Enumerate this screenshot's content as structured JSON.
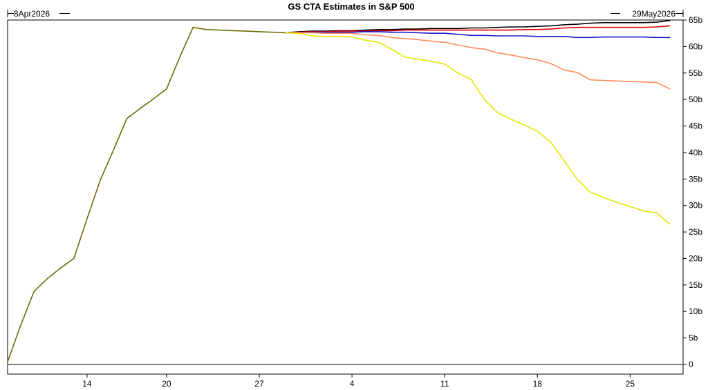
{
  "chart_data": {
    "type": "line",
    "title": "GS CTA Estimates in S&P 500",
    "start_label": "8Apr2026",
    "end_label": "29May2026",
    "xlabel": "",
    "ylabel": "",
    "x_range": [
      "2026-04-08",
      "2026-05-29"
    ],
    "x_ticks": [
      {
        "date": "2026-04-14",
        "label": "14"
      },
      {
        "date": "2026-04-20",
        "label": "20"
      },
      {
        "date": "2026-04-27",
        "label": "27"
      },
      {
        "date": "2026-05-04",
        "label": "4"
      },
      {
        "date": "2026-05-11",
        "label": "11"
      },
      {
        "date": "2026-05-18",
        "label": "18"
      },
      {
        "date": "2026-05-25",
        "label": "25"
      }
    ],
    "ylim": [
      0,
      65
    ],
    "y_ticks": [
      {
        "value": 65,
        "label": "65b"
      },
      {
        "value": 60,
        "label": "60b"
      },
      {
        "value": 55,
        "label": "55b"
      },
      {
        "value": 50,
        "label": "50b"
      },
      {
        "value": 45,
        "label": "45b"
      },
      {
        "value": 40,
        "label": "40b"
      },
      {
        "value": 35,
        "label": "35b"
      },
      {
        "value": 30,
        "label": "30b"
      },
      {
        "value": 25,
        "label": "25b"
      },
      {
        "value": 20,
        "label": "20b"
      },
      {
        "value": 15,
        "label": "15b"
      },
      {
        "value": 10,
        "label": "10b"
      },
      {
        "value": 5,
        "label": "5b"
      },
      {
        "value": 0,
        "label": "0"
      }
    ],
    "y_axis_side": "right",
    "grid": false,
    "legend": "none",
    "series": [
      {
        "color": "#6b6b00",
        "points": [
          [
            "2026-04-08",
            0.5
          ],
          [
            "2026-04-09",
            7.5
          ],
          [
            "2026-04-10",
            13.8
          ],
          [
            "2026-04-11",
            16.2
          ],
          [
            "2026-04-12",
            18.2
          ],
          [
            "2026-04-13",
            20.0
          ],
          [
            "2026-04-14",
            27.5
          ],
          [
            "2026-04-15",
            34.8
          ],
          [
            "2026-04-16",
            40.5
          ],
          [
            "2026-04-17",
            46.4
          ],
          [
            "2026-04-18",
            48.3
          ],
          [
            "2026-04-19",
            50.1
          ],
          [
            "2026-04-20",
            52.0
          ],
          [
            "2026-04-21",
            58.0
          ],
          [
            "2026-04-22",
            63.6
          ],
          [
            "2026-04-23",
            63.2
          ],
          [
            "2026-04-24",
            63.1
          ],
          [
            "2026-04-25",
            63.0
          ],
          [
            "2026-04-26",
            62.9
          ],
          [
            "2026-04-27",
            62.8
          ],
          [
            "2026-04-28",
            62.7
          ],
          [
            "2026-04-29",
            62.6
          ]
        ]
      },
      {
        "color": "#000000",
        "points": [
          [
            "2026-04-29",
            62.6
          ],
          [
            "2026-04-30",
            62.8
          ],
          [
            "2026-05-01",
            62.9
          ],
          [
            "2026-05-02",
            62.9
          ],
          [
            "2026-05-03",
            63.0
          ],
          [
            "2026-05-04",
            63.0
          ],
          [
            "2026-05-05",
            63.1
          ],
          [
            "2026-05-06",
            63.2
          ],
          [
            "2026-05-07",
            63.2
          ],
          [
            "2026-05-08",
            63.3
          ],
          [
            "2026-05-09",
            63.3
          ],
          [
            "2026-05-10",
            63.4
          ],
          [
            "2026-05-11",
            63.4
          ],
          [
            "2026-05-12",
            63.4
          ],
          [
            "2026-05-13",
            63.5
          ],
          [
            "2026-05-14",
            63.5
          ],
          [
            "2026-05-15",
            63.6
          ],
          [
            "2026-05-16",
            63.7
          ],
          [
            "2026-05-17",
            63.7
          ],
          [
            "2026-05-18",
            63.8
          ],
          [
            "2026-05-19",
            63.9
          ],
          [
            "2026-05-20",
            64.1
          ],
          [
            "2026-05-21",
            64.2
          ],
          [
            "2026-05-22",
            64.4
          ],
          [
            "2026-05-23",
            64.5
          ],
          [
            "2026-05-24",
            64.5
          ],
          [
            "2026-05-25",
            64.5
          ],
          [
            "2026-05-26",
            64.5
          ],
          [
            "2026-05-27",
            64.6
          ],
          [
            "2026-05-28",
            64.9
          ]
        ]
      },
      {
        "color": "#e00000",
        "points": [
          [
            "2026-04-29",
            62.6
          ],
          [
            "2026-04-30",
            62.7
          ],
          [
            "2026-05-01",
            62.8
          ],
          [
            "2026-05-02",
            62.8
          ],
          [
            "2026-05-03",
            62.9
          ],
          [
            "2026-05-04",
            62.9
          ],
          [
            "2026-05-05",
            62.9
          ],
          [
            "2026-05-06",
            63.0
          ],
          [
            "2026-05-07",
            63.0
          ],
          [
            "2026-05-08",
            63.1
          ],
          [
            "2026-05-09",
            63.1
          ],
          [
            "2026-05-10",
            63.1
          ],
          [
            "2026-05-11",
            63.1
          ],
          [
            "2026-05-12",
            63.1
          ],
          [
            "2026-05-13",
            63.1
          ],
          [
            "2026-05-14",
            63.1
          ],
          [
            "2026-05-15",
            63.1
          ],
          [
            "2026-05-16",
            63.1
          ],
          [
            "2026-05-17",
            63.2
          ],
          [
            "2026-05-18",
            63.2
          ],
          [
            "2026-05-19",
            63.3
          ],
          [
            "2026-05-20",
            63.5
          ],
          [
            "2026-05-21",
            63.6
          ],
          [
            "2026-05-22",
            63.6
          ],
          [
            "2026-05-23",
            63.6
          ],
          [
            "2026-05-24",
            63.6
          ],
          [
            "2026-05-25",
            63.6
          ],
          [
            "2026-05-26",
            63.6
          ],
          [
            "2026-05-27",
            63.7
          ],
          [
            "2026-05-28",
            63.9
          ]
        ]
      },
      {
        "color": "#1a1acc",
        "points": [
          [
            "2026-04-29",
            62.6
          ],
          [
            "2026-04-30",
            62.6
          ],
          [
            "2026-05-01",
            62.7
          ],
          [
            "2026-05-02",
            62.7
          ],
          [
            "2026-05-03",
            62.7
          ],
          [
            "2026-05-04",
            62.7
          ],
          [
            "2026-05-05",
            62.8
          ],
          [
            "2026-05-06",
            62.8
          ],
          [
            "2026-05-07",
            62.7
          ],
          [
            "2026-05-08",
            62.7
          ],
          [
            "2026-05-09",
            62.6
          ],
          [
            "2026-05-10",
            62.5
          ],
          [
            "2026-05-11",
            62.5
          ],
          [
            "2026-05-12",
            62.3
          ],
          [
            "2026-05-13",
            62.1
          ],
          [
            "2026-05-14",
            62.1
          ],
          [
            "2026-05-15",
            62.0
          ],
          [
            "2026-05-16",
            62.0
          ],
          [
            "2026-05-17",
            62.0
          ],
          [
            "2026-05-18",
            61.9
          ],
          [
            "2026-05-19",
            61.9
          ],
          [
            "2026-05-20",
            61.9
          ],
          [
            "2026-05-21",
            61.7
          ],
          [
            "2026-05-22",
            61.7
          ],
          [
            "2026-05-23",
            61.8
          ],
          [
            "2026-05-24",
            61.8
          ],
          [
            "2026-05-25",
            61.8
          ],
          [
            "2026-05-26",
            61.8
          ],
          [
            "2026-05-27",
            61.7
          ],
          [
            "2026-05-28",
            61.7
          ]
        ]
      },
      {
        "color": "#ff8c5a",
        "points": [
          [
            "2026-04-29",
            62.6
          ],
          [
            "2026-04-30",
            62.6
          ],
          [
            "2026-05-01",
            62.6
          ],
          [
            "2026-05-02",
            62.5
          ],
          [
            "2026-05-03",
            62.5
          ],
          [
            "2026-05-04",
            62.5
          ],
          [
            "2026-05-05",
            62.2
          ],
          [
            "2026-05-06",
            62.1
          ],
          [
            "2026-05-07",
            61.7
          ],
          [
            "2026-05-08",
            61.5
          ],
          [
            "2026-05-09",
            61.3
          ],
          [
            "2026-05-10",
            61.0
          ],
          [
            "2026-05-11",
            60.8
          ],
          [
            "2026-05-12",
            60.3
          ],
          [
            "2026-05-13",
            59.8
          ],
          [
            "2026-05-14",
            59.5
          ],
          [
            "2026-05-15",
            58.8
          ],
          [
            "2026-05-16",
            58.4
          ],
          [
            "2026-05-17",
            57.9
          ],
          [
            "2026-05-18",
            57.5
          ],
          [
            "2026-05-19",
            56.8
          ],
          [
            "2026-05-20",
            55.6
          ],
          [
            "2026-05-21",
            55.1
          ],
          [
            "2026-05-22",
            53.7
          ],
          [
            "2026-05-23",
            53.6
          ],
          [
            "2026-05-24",
            53.5
          ],
          [
            "2026-05-25",
            53.4
          ],
          [
            "2026-05-26",
            53.3
          ],
          [
            "2026-05-27",
            53.2
          ],
          [
            "2026-05-28",
            52.0
          ]
        ]
      },
      {
        "color": "#e6e600",
        "points": [
          [
            "2026-04-29",
            62.6
          ],
          [
            "2026-04-30",
            62.5
          ],
          [
            "2026-05-01",
            62.0
          ],
          [
            "2026-05-02",
            61.9
          ],
          [
            "2026-05-03",
            61.9
          ],
          [
            "2026-05-04",
            61.8
          ],
          [
            "2026-05-05",
            61.2
          ],
          [
            "2026-05-06",
            60.8
          ],
          [
            "2026-05-07",
            59.5
          ],
          [
            "2026-05-08",
            58.0
          ],
          [
            "2026-05-09",
            57.6
          ],
          [
            "2026-05-10",
            57.2
          ],
          [
            "2026-05-11",
            56.7
          ],
          [
            "2026-05-12",
            55.0
          ],
          [
            "2026-05-13",
            53.8
          ],
          [
            "2026-05-14",
            50.0
          ],
          [
            "2026-05-15",
            47.5
          ],
          [
            "2026-05-16",
            46.3
          ],
          [
            "2026-05-17",
            45.2
          ],
          [
            "2026-05-18",
            44.0
          ],
          [
            "2026-05-19",
            42.0
          ],
          [
            "2026-05-20",
            38.5
          ],
          [
            "2026-05-21",
            35.0
          ],
          [
            "2026-05-22",
            32.5
          ],
          [
            "2026-05-23",
            31.5
          ],
          [
            "2026-05-24",
            30.6
          ],
          [
            "2026-05-25",
            29.8
          ],
          [
            "2026-05-26",
            29.0
          ],
          [
            "2026-05-27",
            28.6
          ],
          [
            "2026-05-28",
            26.5
          ]
        ]
      }
    ]
  }
}
